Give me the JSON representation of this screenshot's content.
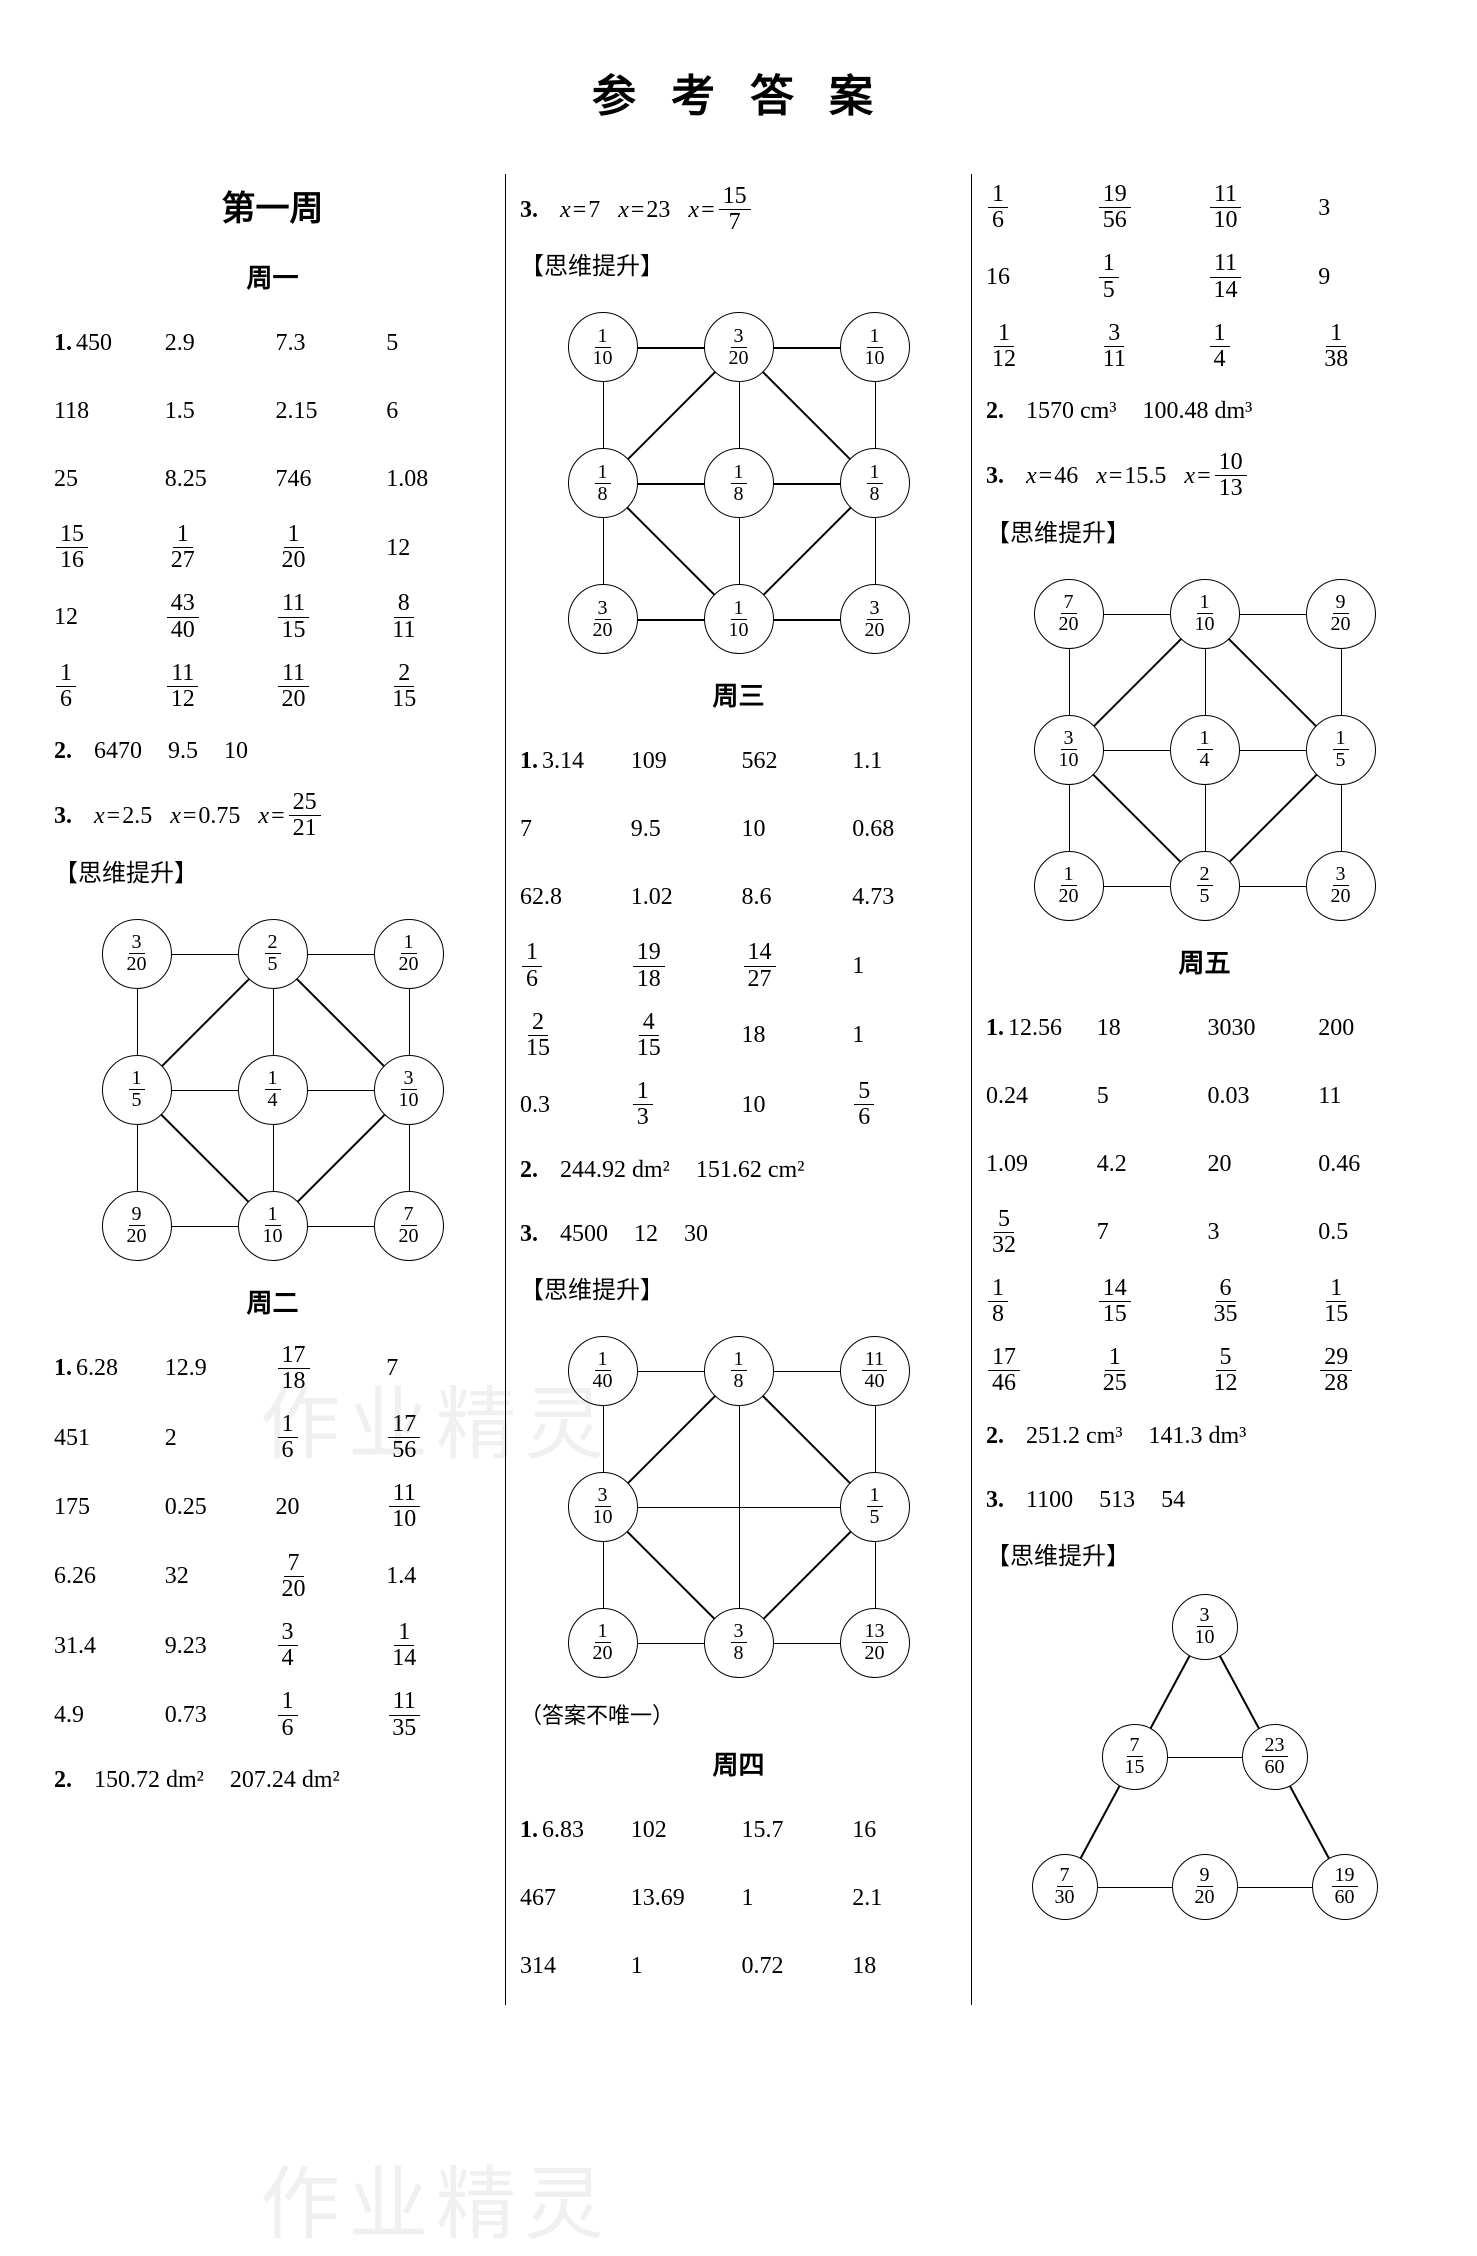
{
  "title": "参 考 答 案",
  "hint_label": "【思维提升】",
  "note_not_unique": "（答案不唯一）",
  "watermark1": "作业精灵",
  "watermark2": "作业精灵",
  "week1_title": "第一周",
  "day1_title": "周一",
  "day2_title": "周二",
  "day3_title": "周三",
  "day4_title": "周四",
  "day5_title": "周五",
  "day1_q1": [
    "450",
    "2.9",
    "7.3",
    "5",
    "118",
    "1.5",
    "2.15",
    "6",
    "25",
    "8.25",
    "746",
    "1.08",
    {
      "frac": [
        "15",
        "16"
      ]
    },
    {
      "frac": [
        "1",
        "27"
      ]
    },
    {
      "frac": [
        "1",
        "20"
      ]
    },
    "12",
    "12",
    {
      "frac": [
        "43",
        "40"
      ]
    },
    {
      "frac": [
        "11",
        "15"
      ]
    },
    {
      "frac": [
        "8",
        "11"
      ]
    },
    {
      "frac": [
        "1",
        "6"
      ]
    },
    {
      "frac": [
        "11",
        "12"
      ]
    },
    {
      "frac": [
        "11",
        "20"
      ]
    },
    {
      "frac": [
        "2",
        "15"
      ]
    }
  ],
  "day1_q2": [
    "6470",
    "9.5",
    "10"
  ],
  "day1_q3": [
    {
      "lhs": "x",
      "rhs": "2.5"
    },
    {
      "lhs": "x",
      "rhs": "0.75"
    },
    {
      "lhs": "x",
      "rhs": {
        "frac": [
          "25",
          "21"
        ]
      }
    }
  ],
  "diagram1": [
    [
      {
        "frac": [
          "3",
          "20"
        ]
      },
      {
        "frac": [
          "2",
          "5"
        ]
      },
      {
        "frac": [
          "1",
          "20"
        ]
      }
    ],
    [
      {
        "frac": [
          "1",
          "5"
        ]
      },
      {
        "frac": [
          "1",
          "4"
        ]
      },
      {
        "frac": [
          "3",
          "10"
        ]
      }
    ],
    [
      {
        "frac": [
          "9",
          "20"
        ]
      },
      {
        "frac": [
          "1",
          "10"
        ]
      },
      {
        "frac": [
          "7",
          "20"
        ]
      }
    ]
  ],
  "day2_q1": [
    "6.28",
    "12.9",
    {
      "frac": [
        "17",
        "18"
      ]
    },
    "7",
    "451",
    "2",
    {
      "frac": [
        "1",
        "6"
      ]
    },
    {
      "frac": [
        "17",
        "56"
      ]
    },
    "175",
    "0.25",
    "20",
    {
      "frac": [
        "11",
        "10"
      ]
    },
    "6.26",
    "32",
    {
      "frac": [
        "7",
        "20"
      ]
    },
    "1.4",
    "31.4",
    "9.23",
    {
      "frac": [
        "3",
        "4"
      ]
    },
    {
      "frac": [
        "1",
        "14"
      ]
    },
    "4.9",
    "0.73",
    {
      "frac": [
        "1",
        "6"
      ]
    },
    {
      "frac": [
        "11",
        "35"
      ]
    }
  ],
  "day2_q2": [
    "150.72 dm²",
    "207.24 dm²"
  ],
  "day2_q3": [
    {
      "lhs": "x",
      "rhs": "7"
    },
    {
      "lhs": "x",
      "rhs": "23"
    },
    {
      "lhs": "x",
      "rhs": {
        "frac": [
          "15",
          "7"
        ]
      }
    }
  ],
  "diagram2": [
    [
      {
        "frac": [
          "1",
          "10"
        ]
      },
      {
        "frac": [
          "3",
          "20"
        ]
      },
      {
        "frac": [
          "1",
          "10"
        ]
      }
    ],
    [
      {
        "frac": [
          "1",
          "8"
        ]
      },
      {
        "frac": [
          "1",
          "8"
        ]
      },
      {
        "frac": [
          "1",
          "8"
        ]
      }
    ],
    [
      {
        "frac": [
          "3",
          "20"
        ]
      },
      {
        "frac": [
          "1",
          "10"
        ]
      },
      {
        "frac": [
          "3",
          "20"
        ]
      }
    ]
  ],
  "day3_q1": [
    "3.14",
    "109",
    "562",
    "1.1",
    "7",
    "9.5",
    "10",
    "0.68",
    "62.8",
    "1.02",
    "8.6",
    "4.73",
    {
      "frac": [
        "1",
        "6"
      ]
    },
    {
      "frac": [
        "19",
        "18"
      ]
    },
    {
      "frac": [
        "14",
        "27"
      ]
    },
    "1",
    {
      "frac": [
        "2",
        "15"
      ]
    },
    {
      "frac": [
        "4",
        "15"
      ]
    },
    "18",
    "1",
    "0.3",
    {
      "frac": [
        "1",
        "3"
      ]
    },
    "10",
    {
      "frac": [
        "5",
        "6"
      ]
    }
  ],
  "day3_q2": [
    "244.92 dm²",
    "151.62 cm²"
  ],
  "day3_q3": [
    "4500",
    "12",
    "30"
  ],
  "diagram3": [
    [
      {
        "frac": [
          "1",
          "40"
        ]
      },
      {
        "frac": [
          "1",
          "8"
        ]
      },
      {
        "frac": [
          "11",
          "40"
        ]
      }
    ],
    [
      {
        "frac": [
          "3",
          "10"
        ]
      },
      "",
      {
        "frac": [
          "1",
          "5"
        ]
      }
    ],
    [
      {
        "frac": [
          "1",
          "20"
        ]
      },
      {
        "frac": [
          "3",
          "8"
        ]
      },
      {
        "frac": [
          "13",
          "20"
        ]
      }
    ]
  ],
  "day4_q1a": [
    "6.83",
    "102",
    "15.7",
    "16",
    "467",
    "13.69",
    "1",
    "2.1",
    "314",
    "1",
    "0.72",
    "18"
  ],
  "day4_q1b": [
    {
      "frac": [
        "1",
        "6"
      ]
    },
    {
      "frac": [
        "19",
        "56"
      ]
    },
    {
      "frac": [
        "11",
        "10"
      ]
    },
    "3",
    "16",
    {
      "frac": [
        "1",
        "5"
      ]
    },
    {
      "frac": [
        "11",
        "14"
      ]
    },
    "9",
    {
      "frac": [
        "1",
        "12"
      ]
    },
    {
      "frac": [
        "3",
        "11"
      ]
    },
    {
      "frac": [
        "1",
        "4"
      ]
    },
    {
      "frac": [
        "1",
        "38"
      ]
    }
  ],
  "day4_q2": [
    "1570 cm³",
    "100.48 dm³"
  ],
  "day4_q3": [
    {
      "lhs": "x",
      "rhs": "46"
    },
    {
      "lhs": "x",
      "rhs": "15.5"
    },
    {
      "lhs": "x",
      "rhs": {
        "frac": [
          "10",
          "13"
        ]
      }
    }
  ],
  "diagram4": [
    [
      {
        "frac": [
          "7",
          "20"
        ]
      },
      {
        "frac": [
          "1",
          "10"
        ]
      },
      {
        "frac": [
          "9",
          "20"
        ]
      }
    ],
    [
      {
        "frac": [
          "3",
          "10"
        ]
      },
      {
        "frac": [
          "1",
          "4"
        ]
      },
      {
        "frac": [
          "1",
          "5"
        ]
      }
    ],
    [
      {
        "frac": [
          "1",
          "20"
        ]
      },
      {
        "frac": [
          "2",
          "5"
        ]
      },
      {
        "frac": [
          "3",
          "20"
        ]
      }
    ]
  ],
  "day5_q1": [
    "12.56",
    "18",
    "3030",
    "200",
    "0.24",
    "5",
    "0.03",
    "11",
    "1.09",
    "4.2",
    "20",
    "0.46",
    {
      "frac": [
        "5",
        "32"
      ]
    },
    "7",
    "3",
    "0.5",
    {
      "frac": [
        "1",
        "8"
      ]
    },
    {
      "frac": [
        "14",
        "15"
      ]
    },
    {
      "frac": [
        "6",
        "35"
      ]
    },
    {
      "frac": [
        "1",
        "15"
      ]
    },
    {
      "frac": [
        "17",
        "46"
      ]
    },
    {
      "frac": [
        "1",
        "25"
      ]
    },
    {
      "frac": [
        "5",
        "12"
      ]
    },
    {
      "frac": [
        "29",
        "28"
      ]
    }
  ],
  "day5_q2": [
    "251.2 cm³",
    "141.3 dm³"
  ],
  "day5_q3": [
    "1100",
    "513",
    "54"
  ],
  "triangle": {
    "top": {
      "frac": [
        "3",
        "10"
      ]
    },
    "mid": [
      {
        "frac": [
          "7",
          "15"
        ]
      },
      {
        "frac": [
          "23",
          "60"
        ]
      }
    ],
    "bot": [
      {
        "frac": [
          "7",
          "30"
        ]
      },
      {
        "frac": [
          "9",
          "20"
        ]
      },
      {
        "frac": [
          "19",
          "60"
        ]
      }
    ]
  }
}
